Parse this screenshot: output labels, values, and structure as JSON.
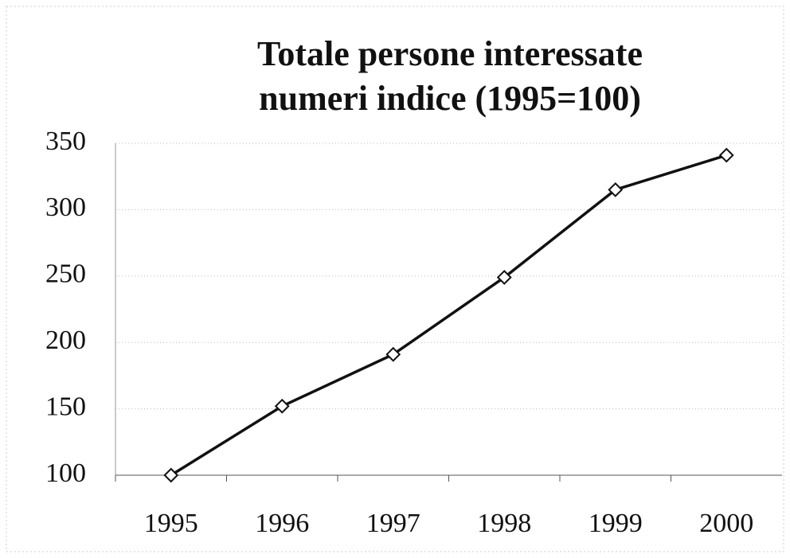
{
  "chart_data": {
    "type": "line",
    "title": [
      "Totale persone interessate",
      "numeri indice (1995=100)"
    ],
    "categories": [
      "1995",
      "1996",
      "1997",
      "1998",
      "1999",
      "2000"
    ],
    "series": [
      {
        "name": "Totale persone interessate",
        "color": "#111111",
        "values": [
          100,
          152,
          191,
          249,
          315,
          341
        ]
      }
    ],
    "ylim": [
      100,
      350
    ],
    "yticks": [
      100,
      150,
      200,
      250,
      300,
      350
    ],
    "grid": true,
    "marker": "diamond"
  }
}
